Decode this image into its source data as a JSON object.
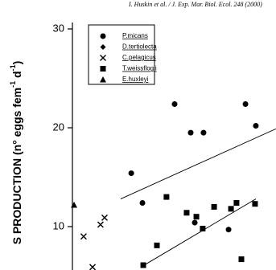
{
  "header": "I. Huskin et al. / J. Exp. Mar. Biol. Ecol. 248 (2000)",
  "chart_data": {
    "type": "scatter",
    "y_label": [
      "S PRODUCTION (n° eggs fem",
      "-1",
      " d",
      "-1",
      ")"
    ],
    "xlim": [
      0,
      100
    ],
    "ylim": [
      0,
      30
    ],
    "yticks": [
      10,
      20,
      30
    ],
    "series": [
      {
        "name": "P.micans",
        "marker": "circle",
        "color": "#000000",
        "x": [
          28.9,
          34.4,
          50.2,
          58.1,
          64.4,
          85.0,
          90.1,
          60.1,
          76.7
        ],
        "values": [
          15.4,
          12.4,
          22.4,
          19.5,
          19.5,
          22.4,
          20.2,
          10.4,
          9.7
        ]
      },
      {
        "name": "D.tertiolecta",
        "marker": "diamond",
        "color": "#000000",
        "x": [],
        "values": []
      },
      {
        "name": "C.pelagicus",
        "marker": "cross",
        "color": "#000000",
        "x": [
          5.5,
          13.8,
          15.8,
          9.9
        ],
        "values": [
          9.0,
          10.2,
          10.9,
          5.9
        ]
      },
      {
        "name": "T.weissflogii",
        "marker": "square",
        "color": "#000000",
        "x": [
          46.2,
          41.5,
          56.1,
          60.9,
          64.0,
          69.6,
          77.9,
          80.6,
          89.7,
          83.0,
          34.8
        ],
        "values": [
          13.0,
          8.1,
          11.4,
          11.0,
          9.8,
          12.0,
          11.8,
          12.4,
          12.3,
          6.7,
          6.1
        ]
      },
      {
        "name": "E.huxleyi",
        "marker": "triangle",
        "color": "#000000",
        "x": [
          0.8
        ],
        "values": [
          12.2
        ]
      }
    ],
    "fits": [
      {
        "x": [
          23.7,
          100
        ],
        "values": [
          12.8,
          19.9
        ]
      },
      {
        "x": [
          33.6,
          90.1
        ],
        "values": [
          5.9,
          12.8
        ]
      }
    ]
  }
}
